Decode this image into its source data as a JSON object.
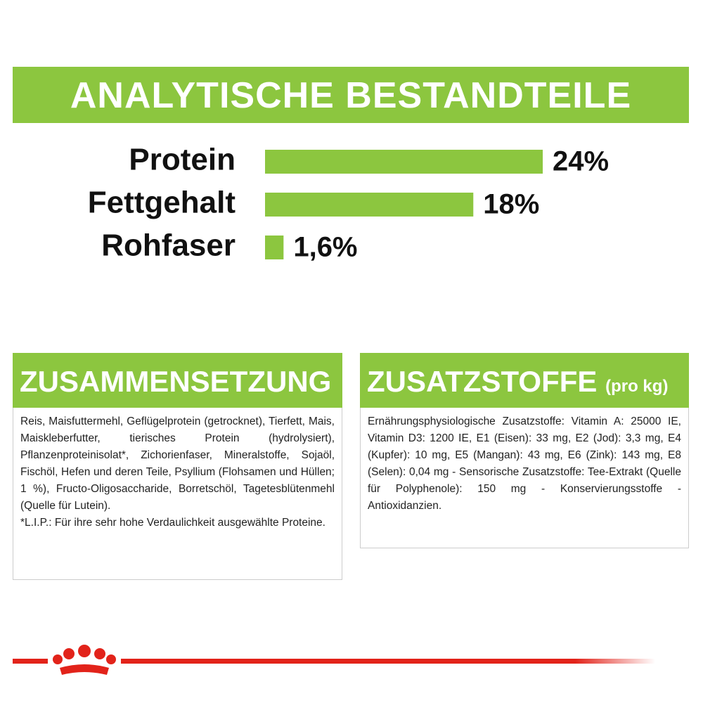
{
  "chart_data": {
    "type": "bar",
    "title": "ANALYTISCHE BESTANDTEILE",
    "categories": [
      "Protein",
      "Fettgehalt",
      "Rohfaser"
    ],
    "values": [
      24,
      18,
      1.6
    ],
    "value_labels": [
      "24%",
      "18%",
      "1,6%"
    ],
    "color": "#8cc63f"
  },
  "sections": [
    {
      "title": "ZUSAMMENSETZUNG",
      "text": "Reis, Maisfuttermehl, Geflügelprotein (getrocknet), Tierfett, Mais, Maiskleberfutter, tierisches Protein (hydrolysiert), Pflanzenproteinisolat*, Zichorienfaser, Mineralstoffe, Sojaöl, Fischöl, Hefen und deren Teile, Psyllium (Flohsamen und Hüllen; 1 %), Fructo-Oligosaccharide, Borretschöl, Tagetesblütenmehl (Quelle für Lutein).",
      "note": "*L.I.P.: Für ihre sehr hohe Verdaulichkeit ausgewählte Proteine."
    },
    {
      "title": "ZUSATZSTOFFE",
      "subtitle": "(pro kg)",
      "text": "Ernährungsphysiologische Zusatzstoffe: Vitamin A: 25000 IE, Vitamin D3: 1200 IE, E1 (Eisen): 33 mg, E2 (Jod): 3,3 mg, E4 (Kupfer): 10 mg, E5 (Mangan): 43 mg, E6 (Zink): 143 mg, E8 (Selen): 0,04 mg - Sensorische Zusatzstoffe: Tee-Extrakt (Quelle für Polyphenole): 150 mg - Konservierungsstoffe - Antioxidanzien."
    }
  ]
}
